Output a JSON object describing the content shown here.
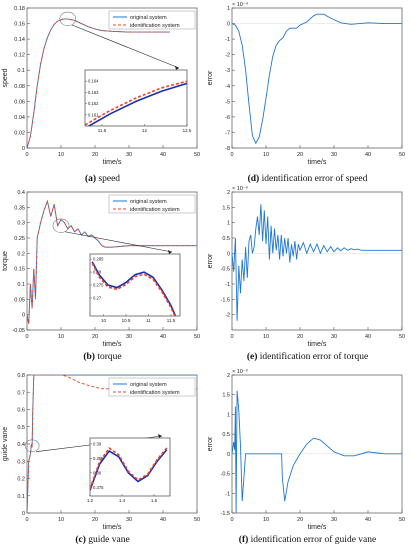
{
  "colors": {
    "original": "#1f77d0",
    "identification": "#e8452c",
    "axis": "#333333",
    "frame": "#888888"
  },
  "captions": [
    {
      "letter": "(a)",
      "text": " speed"
    },
    {
      "letter": "(d)",
      "text": " identification error of speed"
    },
    {
      "letter": "(b)",
      "text": " torque"
    },
    {
      "letter": "(e)",
      "text": " identification error of torque"
    },
    {
      "letter": "(c)",
      "text": " guide vane"
    },
    {
      "letter": "(f)",
      "text": " identification error of guide vane"
    }
  ],
  "chart_data": [
    {
      "id": "a",
      "type": "line",
      "xlabel": "time/s",
      "ylabel": "speed",
      "xlim": [
        0,
        50
      ],
      "ylim": [
        0,
        0.18
      ],
      "xticks": [
        0,
        10,
        20,
        30,
        40,
        50
      ],
      "yticks": [
        0,
        0.02,
        0.04,
        0.06,
        0.08,
        0.1,
        0.12,
        0.14,
        0.16,
        0.18
      ],
      "legend": {
        "position": "top-right",
        "entries": [
          "original system",
          "identification system"
        ]
      },
      "series": [
        {
          "name": "original system",
          "style": "solid",
          "x": [
            0,
            1,
            2,
            3,
            4,
            5,
            6,
            7,
            8,
            9,
            10,
            11,
            12,
            14,
            16,
            18,
            20,
            22,
            25,
            30,
            35,
            40,
            42
          ],
          "y": [
            0,
            0.015,
            0.045,
            0.08,
            0.108,
            0.128,
            0.142,
            0.152,
            0.159,
            0.163,
            0.165,
            0.166,
            0.166,
            0.164,
            0.16,
            0.156,
            0.153,
            0.151,
            0.15,
            0.149,
            0.149,
            0.149,
            0.149
          ]
        },
        {
          "name": "identification system",
          "style": "dashed",
          "x": [
            0,
            1,
            2,
            3,
            4,
            5,
            6,
            7,
            8,
            9,
            10,
            11,
            12,
            14,
            16,
            18,
            20,
            22,
            25,
            30,
            35,
            40,
            42
          ],
          "y": [
            0,
            0.015,
            0.045,
            0.08,
            0.108,
            0.128,
            0.142,
            0.152,
            0.159,
            0.163,
            0.165,
            0.166,
            0.166,
            0.164,
            0.16,
            0.156,
            0.153,
            0.151,
            0.15,
            0.149,
            0.149,
            0.149,
            0.149
          ]
        }
      ],
      "inset": {
        "xlim": [
          11.3,
          12.5
        ],
        "ylim": [
          0.16,
          0.165
        ],
        "xticks": [
          11.5,
          12,
          12.5
        ],
        "xticklabels": [
          "11.5",
          "12",
          "12.5"
        ],
        "yticks": [
          0.161,
          0.162,
          0.163,
          0.164
        ],
        "yticklabels": [
          "0.161",
          "0.162",
          "0.163",
          "0.164"
        ],
        "series": [
          {
            "name": "original system",
            "x": [
              11.3,
              11.6,
              11.9,
              12.2,
              12.5
            ],
            "y": [
              0.1598,
              0.1611,
              0.1622,
              0.1631,
              0.1638
            ]
          },
          {
            "name": "identification system",
            "x": [
              11.3,
              11.6,
              11.9,
              12.2,
              12.5
            ],
            "y": [
              0.1601,
              0.1614,
              0.1625,
              0.1634,
              0.164
            ]
          }
        ]
      }
    },
    {
      "id": "d",
      "type": "line",
      "xlabel": "time/s",
      "ylabel": "error",
      "exponent": "× 10⁻⁴",
      "xlim": [
        0,
        50
      ],
      "ylim": [
        -8,
        1
      ],
      "xticks": [
        0,
        10,
        20,
        30,
        40,
        50
      ],
      "yticks": [
        -8,
        -7,
        -6,
        -5,
        -4,
        -3,
        -2,
        -1,
        0,
        1
      ],
      "series": [
        {
          "name": "",
          "style": "solid",
          "x": [
            0,
            1,
            2,
            3,
            4,
            5,
            6,
            7,
            8,
            9,
            10,
            11,
            12,
            13,
            14,
            15,
            16,
            17,
            18,
            19,
            20,
            22,
            24,
            25,
            27,
            29,
            32,
            35,
            40,
            45,
            50
          ],
          "y": [
            0,
            -0.1,
            -0.5,
            -1.4,
            -3,
            -5.2,
            -7.2,
            -7.7,
            -7.3,
            -6.2,
            -4.8,
            -3.3,
            -2.1,
            -1.4,
            -1.1,
            -0.9,
            -0.5,
            -0.3,
            -0.3,
            -0.3,
            -0.1,
            0.1,
            0.5,
            0.6,
            0.6,
            0.35,
            0.05,
            -0.05,
            0.05,
            0.0,
            0.0
          ]
        }
      ]
    },
    {
      "id": "b",
      "type": "line",
      "xlabel": "time/s",
      "ylabel": "torque",
      "xlim": [
        0,
        50
      ],
      "ylim": [
        -0.05,
        0.4
      ],
      "xticks": [
        0,
        10,
        20,
        30,
        40,
        50
      ],
      "yticks": [
        -0.05,
        0,
        0.05,
        0.1,
        0.15,
        0.2,
        0.25,
        0.3,
        0.35,
        0.4
      ],
      "legend": {
        "position": "top-right",
        "entries": [
          "original system",
          "identification system"
        ]
      },
      "series": [
        {
          "name": "original system",
          "style": "solid",
          "x": [
            0,
            0.5,
            1,
            1.5,
            2,
            2.5,
            3,
            4,
            5,
            6,
            7,
            8,
            9,
            10,
            11,
            12,
            13,
            14,
            15,
            16,
            17,
            18,
            19,
            20,
            21,
            22,
            23,
            25,
            30,
            40,
            50
          ],
          "y": [
            0,
            -0.03,
            0.1,
            0.02,
            0.15,
            0.05,
            0.25,
            0.3,
            0.34,
            0.37,
            0.32,
            0.36,
            0.29,
            0.31,
            0.3,
            0.28,
            0.29,
            0.27,
            0.28,
            0.26,
            0.27,
            0.255,
            0.26,
            0.25,
            0.24,
            0.225,
            0.22,
            0.22,
            0.225,
            0.225,
            0.225
          ]
        },
        {
          "name": "identification system",
          "style": "dashed",
          "x": [
            0,
            0.5,
            1,
            1.5,
            2,
            2.5,
            3,
            4,
            5,
            6,
            7,
            8,
            9,
            10,
            11,
            12,
            13,
            14,
            15,
            16,
            17,
            18,
            19,
            20,
            21,
            22,
            23,
            25,
            30,
            40,
            50
          ],
          "y": [
            0,
            -0.03,
            0.1,
            0.02,
            0.15,
            0.05,
            0.25,
            0.3,
            0.34,
            0.37,
            0.32,
            0.36,
            0.29,
            0.31,
            0.3,
            0.28,
            0.29,
            0.27,
            0.28,
            0.26,
            0.27,
            0.255,
            0.26,
            0.25,
            0.24,
            0.225,
            0.22,
            0.22,
            0.225,
            0.225,
            0.225
          ]
        }
      ],
      "inset": {
        "xlim": [
          9.7,
          11.7
        ],
        "ylim": [
          0.263,
          0.287
        ],
        "xticks": [
          10,
          10.5,
          11,
          11.5
        ],
        "xticklabels": [
          "10",
          "10.5",
          "11",
          "11.5"
        ],
        "yticks": [
          0.27,
          0.275,
          0.28,
          0.285
        ],
        "yticklabels": [
          "0.27",
          "0.275",
          "0.28",
          "0.285"
        ],
        "series": [
          {
            "name": "original system",
            "x": [
              9.75,
              9.9,
              10.1,
              10.3,
              10.5,
              10.7,
              10.9,
              11.1,
              11.3,
              11.5,
              11.6
            ],
            "y": [
              0.284,
              0.279,
              0.275,
              0.274,
              0.276,
              0.279,
              0.28,
              0.278,
              0.273,
              0.267,
              0.263
            ]
          },
          {
            "name": "identification system",
            "x": [
              9.75,
              9.9,
              10.1,
              10.3,
              10.5,
              10.7,
              10.9,
              11.1,
              11.3,
              11.5,
              11.6
            ],
            "y": [
              0.2835,
              0.2782,
              0.2742,
              0.2733,
              0.2752,
              0.2782,
              0.2792,
              0.2772,
              0.2723,
              0.2662,
              0.2625
            ]
          }
        ]
      }
    },
    {
      "id": "e",
      "type": "line",
      "xlabel": "time/s",
      "ylabel": "error",
      "exponent": "× 10⁻³",
      "xlim": [
        0,
        50
      ],
      "ylim": [
        -2.5,
        2
      ],
      "xticks": [
        0,
        10,
        20,
        30,
        40,
        50
      ],
      "yticks": [
        -2,
        -1.5,
        -1,
        -0.5,
        0,
        0.5,
        1,
        1.5,
        2
      ],
      "series": [
        {
          "name": "",
          "style": "solid",
          "x": [
            0,
            0.5,
            1,
            1.5,
            2,
            2.5,
            3,
            3.5,
            4,
            4.5,
            5,
            5.5,
            6,
            6.5,
            7,
            7.5,
            8,
            8.5,
            9,
            9.5,
            10,
            10.5,
            11,
            11.5,
            12,
            12.5,
            13,
            13.5,
            14,
            14.5,
            15,
            15.5,
            16,
            16.5,
            17,
            17.5,
            18,
            18.5,
            19,
            19.5,
            20,
            21,
            22,
            23,
            24,
            25,
            26,
            27,
            28,
            29,
            30,
            31,
            32,
            33,
            34,
            35,
            36,
            37,
            38,
            40,
            45,
            50
          ],
          "y": [
            0,
            -0.6,
            0.5,
            -2.2,
            -0.4,
            -1.3,
            -0.2,
            -0.9,
            0.2,
            -0.8,
            0.4,
            0.6,
            0.0,
            0.2,
            0.8,
            1.2,
            0.6,
            1.6,
            0.4,
            1.4,
            0.3,
            1.2,
            -0.2,
            0.9,
            0.0,
            0.8,
            0.1,
            0.6,
            -0.2,
            0.6,
            -0.1,
            0.5,
            0.0,
            0.5,
            -0.3,
            0.3,
            -0.1,
            0.4,
            -0.2,
            0.3,
            0.1,
            0.35,
            0.0,
            0.3,
            0.05,
            0.3,
            0.0,
            0.25,
            0.05,
            0.22,
            0.05,
            0.18,
            0.08,
            0.18,
            0.1,
            0.15,
            0.12,
            0.14,
            0.1,
            0.1,
            0.1,
            0.1
          ]
        }
      ]
    },
    {
      "id": "c",
      "type": "line",
      "xlabel": "time/s",
      "ylabel": "guide vane",
      "xlim": [
        0,
        50
      ],
      "ylim": [
        0,
        0.8
      ],
      "xticks": [
        0,
        10,
        20,
        30,
        40,
        50
      ],
      "yticks": [
        0,
        0.1,
        0.2,
        0.3,
        0.4,
        0.5,
        0.6,
        0.7,
        0.8
      ],
      "legend": {
        "position": "top-right",
        "entries": [
          "original system",
          "identification system"
        ]
      },
      "series": [
        {
          "name": "original system",
          "style": "solid",
          "x": [
            0,
            0.5,
            1,
            1.3,
            1.5,
            1.7,
            2,
            2.5,
            3,
            50
          ],
          "y": [
            0,
            0.3,
            0.34,
            0.4,
            0.38,
            0.6,
            0.8,
            0.8,
            0.8,
            0.8
          ]
        },
        {
          "name": "identification system",
          "style": "dashed",
          "x": [
            0,
            0.5,
            1,
            1.3,
            1.5,
            1.7,
            2,
            2.5,
            3,
            10,
            12,
            15,
            18,
            20,
            22,
            25,
            30,
            40,
            50
          ],
          "y": [
            0,
            0.3,
            0.34,
            0.4,
            0.38,
            0.6,
            0.8,
            0.8,
            0.8,
            0.8,
            0.79,
            0.76,
            0.74,
            0.73,
            0.72,
            0.72,
            0.72,
            0.72,
            0.72
          ]
        }
      ],
      "inset": {
        "xlim": [
          1.2,
          1.7
        ],
        "ylim": [
          0.372,
          0.392
        ],
        "xticks": [
          1.2,
          1.4,
          1.6
        ],
        "xticklabels": [
          "1.2",
          "1.4",
          "1.6"
        ],
        "yticks": [
          0.375,
          0.38,
          0.385,
          0.39
        ],
        "yticklabels": [
          "0.375",
          "0.38",
          "0.385",
          "0.39"
        ],
        "series": [
          {
            "name": "original system",
            "x": [
              1.2,
              1.26,
              1.32,
              1.38,
              1.44,
              1.5,
              1.56,
              1.62,
              1.68
            ],
            "y": [
              0.374,
              0.383,
              0.3875,
              0.3855,
              0.38,
              0.377,
              0.379,
              0.384,
              0.388
            ]
          },
          {
            "name": "identification system",
            "x": [
              1.2,
              1.26,
              1.32,
              1.38,
              1.44,
              1.5,
              1.56,
              1.62,
              1.68
            ],
            "y": [
              0.3745,
              0.3838,
              0.3885,
              0.3862,
              0.3805,
              0.3775,
              0.3795,
              0.3846,
              0.3886
            ]
          }
        ]
      }
    },
    {
      "id": "f",
      "type": "line",
      "xlabel": "time/s",
      "ylabel": "error",
      "exponent": "× 10⁻³",
      "xlim": [
        0,
        50
      ],
      "ylim": [
        -1.5,
        2
      ],
      "xticks": [
        0,
        10,
        20,
        30,
        40,
        50
      ],
      "yticks": [
        -1.5,
        -1,
        -0.5,
        0,
        0.5,
        1,
        1.5,
        2
      ],
      "series": [
        {
          "name": "",
          "style": "solid",
          "x": [
            0,
            0.5,
            0.8,
            1.0,
            1.2,
            1.5,
            2,
            2.5,
            3,
            4,
            5,
            14.6,
            14.8,
            15.5,
            16.5,
            18,
            20,
            22,
            24,
            26,
            28,
            30,
            33,
            36,
            40,
            45,
            50
          ],
          "y": [
            0,
            0.3,
            0.1,
            1.2,
            -1.5,
            1.6,
            1.1,
            0.2,
            -1.2,
            0.0,
            0.0,
            0.0,
            -0.6,
            -1.2,
            -0.7,
            -0.3,
            0.0,
            0.25,
            0.4,
            0.35,
            0.2,
            0.05,
            -0.05,
            -0.05,
            0.05,
            0.0,
            0.0
          ]
        }
      ]
    }
  ]
}
